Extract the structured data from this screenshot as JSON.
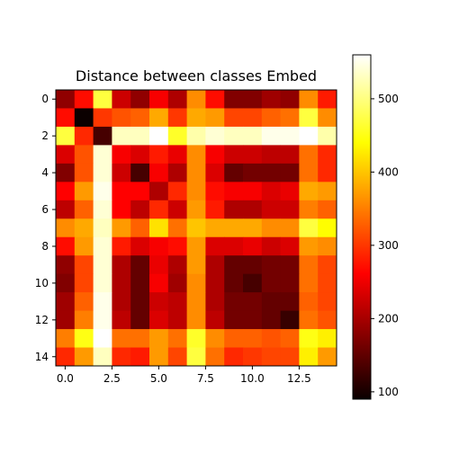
{
  "chart_data": {
    "type": "heatmap",
    "title": "Distance between classes Embed",
    "xlabel": "",
    "ylabel": "",
    "x_ticks": [
      "0.0",
      "2.5",
      "5.0",
      "7.5",
      "10.0",
      "12.5"
    ],
    "x_tick_values": [
      0,
      2.5,
      5,
      7.5,
      10,
      12.5
    ],
    "y_ticks": [
      "0",
      "2",
      "4",
      "6",
      "8",
      "10",
      "12",
      "14"
    ],
    "y_tick_values": [
      0,
      2,
      4,
      6,
      8,
      10,
      12,
      14
    ],
    "xlim": [
      -0.5,
      14.5
    ],
    "ylim": [
      14.5,
      -0.5
    ],
    "colormap": "hot",
    "colorbar": {
      "vmin": 90,
      "vmax": 560,
      "ticks": [
        "100",
        "200",
        "300",
        "400",
        "500"
      ],
      "tick_values": [
        100,
        200,
        300,
        400,
        500
      ]
    },
    "rows": 15,
    "cols": 15,
    "values": [
      [
        180,
        270,
        470,
        220,
        180,
        250,
        200,
        360,
        270,
        170,
        170,
        190,
        180,
        360,
        280
      ],
      [
        270,
        90,
        300,
        320,
        330,
        380,
        300,
        380,
        370,
        310,
        310,
        330,
        340,
        470,
        360
      ],
      [
        470,
        290,
        130,
        530,
        530,
        560,
        460,
        520,
        540,
        530,
        530,
        550,
        550,
        560,
        520
      ],
      [
        230,
        320,
        540,
        250,
        230,
        280,
        240,
        360,
        250,
        220,
        220,
        210,
        210,
        340,
        290
      ],
      [
        170,
        320,
        540,
        220,
        130,
        250,
        200,
        360,
        230,
        150,
        160,
        160,
        160,
        340,
        290
      ],
      [
        260,
        370,
        550,
        260,
        260,
        200,
        290,
        360,
        270,
        250,
        250,
        230,
        240,
        380,
        370
      ],
      [
        210,
        330,
        540,
        260,
        210,
        290,
        220,
        370,
        280,
        200,
        200,
        220,
        220,
        350,
        330
      ],
      [
        360,
        380,
        530,
        370,
        330,
        420,
        340,
        400,
        380,
        380,
        380,
        360,
        360,
        470,
        440
      ],
      [
        270,
        370,
        540,
        280,
        230,
        250,
        270,
        370,
        230,
        230,
        240,
        220,
        230,
        370,
        360
      ],
      [
        180,
        310,
        540,
        200,
        150,
        240,
        200,
        370,
        200,
        150,
        150,
        160,
        160,
        340,
        310
      ],
      [
        170,
        310,
        540,
        200,
        150,
        250,
        190,
        360,
        200,
        150,
        130,
        160,
        160,
        340,
        310
      ],
      [
        190,
        330,
        550,
        200,
        150,
        220,
        210,
        360,
        200,
        160,
        160,
        150,
        150,
        330,
        310
      ],
      [
        190,
        350,
        550,
        210,
        150,
        230,
        210,
        360,
        210,
        160,
        160,
        150,
        120,
        340,
        320
      ],
      [
        350,
        450,
        560,
        340,
        340,
        370,
        340,
        460,
        360,
        330,
        330,
        320,
        330,
        450,
        430
      ],
      [
        290,
        370,
        530,
        290,
        280,
        370,
        310,
        470,
        340,
        290,
        300,
        310,
        310,
        430,
        370
      ]
    ]
  }
}
